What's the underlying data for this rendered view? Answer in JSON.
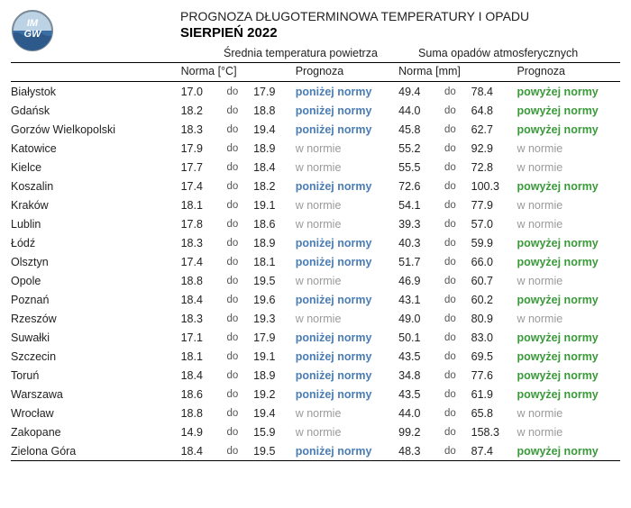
{
  "header": {
    "main_title": "PROGNOZA DŁUGOTERMINOWA TEMPERATURY I OPADU",
    "sub_title": "SIERPIEŃ 2022",
    "temp_section": "Średnia temperatura powietrza",
    "precip_section": "Suma opadów atmosferycznych",
    "norm_temp": "Norma [°C]",
    "norm_precip": "Norma [mm]",
    "prognoza": "Prognoza",
    "do": "do"
  },
  "colors": {
    "ponizej": "#4a7db5",
    "wnormie": "#9a9a9a",
    "powyzej": "#3a9a3a",
    "border": "#000000",
    "text": "#222222"
  },
  "status_labels": {
    "ponizej": "poniżej normy",
    "wnormie": "w normie",
    "powyzej": "powyżej normy"
  },
  "rows": [
    {
      "city": "Białystok",
      "tmin": "17.0",
      "tmax": "17.9",
      "tprog": "ponizej",
      "pmin": "49.4",
      "pmax": "78.4",
      "pprog": "powyzej"
    },
    {
      "city": "Gdańsk",
      "tmin": "18.2",
      "tmax": "18.8",
      "tprog": "ponizej",
      "pmin": "44.0",
      "pmax": "64.8",
      "pprog": "powyzej"
    },
    {
      "city": "Gorzów Wielkopolski",
      "tmin": "18.3",
      "tmax": "19.4",
      "tprog": "ponizej",
      "pmin": "45.8",
      "pmax": "62.7",
      "pprog": "powyzej"
    },
    {
      "city": "Katowice",
      "tmin": "17.9",
      "tmax": "18.9",
      "tprog": "wnormie",
      "pmin": "55.2",
      "pmax": "92.9",
      "pprog": "wnormie"
    },
    {
      "city": "Kielce",
      "tmin": "17.7",
      "tmax": "18.4",
      "tprog": "wnormie",
      "pmin": "55.5",
      "pmax": "72.8",
      "pprog": "wnormie"
    },
    {
      "city": "Koszalin",
      "tmin": "17.4",
      "tmax": "18.2",
      "tprog": "ponizej",
      "pmin": "72.6",
      "pmax": "100.3",
      "pprog": "powyzej"
    },
    {
      "city": "Kraków",
      "tmin": "18.1",
      "tmax": "19.1",
      "tprog": "wnormie",
      "pmin": "54.1",
      "pmax": "77.9",
      "pprog": "wnormie"
    },
    {
      "city": "Lublin",
      "tmin": "17.8",
      "tmax": "18.6",
      "tprog": "wnormie",
      "pmin": "39.3",
      "pmax": "57.0",
      "pprog": "wnormie"
    },
    {
      "city": "Łódź",
      "tmin": "18.3",
      "tmax": "18.9",
      "tprog": "ponizej",
      "pmin": "40.3",
      "pmax": "59.9",
      "pprog": "powyzej"
    },
    {
      "city": "Olsztyn",
      "tmin": "17.4",
      "tmax": "18.1",
      "tprog": "ponizej",
      "pmin": "51.7",
      "pmax": "66.0",
      "pprog": "powyzej"
    },
    {
      "city": "Opole",
      "tmin": "18.8",
      "tmax": "19.5",
      "tprog": "wnormie",
      "pmin": "46.9",
      "pmax": "60.7",
      "pprog": "wnormie"
    },
    {
      "city": "Poznań",
      "tmin": "18.4",
      "tmax": "19.6",
      "tprog": "ponizej",
      "pmin": "43.1",
      "pmax": "60.2",
      "pprog": "powyzej"
    },
    {
      "city": "Rzeszów",
      "tmin": "18.3",
      "tmax": "19.3",
      "tprog": "wnormie",
      "pmin": "49.0",
      "pmax": "80.9",
      "pprog": "wnormie"
    },
    {
      "city": "Suwałki",
      "tmin": "17.1",
      "tmax": "17.9",
      "tprog": "ponizej",
      "pmin": "50.1",
      "pmax": "83.0",
      "pprog": "powyzej"
    },
    {
      "city": "Szczecin",
      "tmin": "18.1",
      "tmax": "19.1",
      "tprog": "ponizej",
      "pmin": "43.5",
      "pmax": "69.5",
      "pprog": "powyzej"
    },
    {
      "city": "Toruń",
      "tmin": "18.4",
      "tmax": "18.9",
      "tprog": "ponizej",
      "pmin": "34.8",
      "pmax": "77.6",
      "pprog": "powyzej"
    },
    {
      "city": "Warszawa",
      "tmin": "18.6",
      "tmax": "19.2",
      "tprog": "ponizej",
      "pmin": "43.5",
      "pmax": "61.9",
      "pprog": "powyzej"
    },
    {
      "city": "Wrocław",
      "tmin": "18.8",
      "tmax": "19.4",
      "tprog": "wnormie",
      "pmin": "44.0",
      "pmax": "65.8",
      "pprog": "wnormie"
    },
    {
      "city": "Zakopane",
      "tmin": "14.9",
      "tmax": "15.9",
      "tprog": "wnormie",
      "pmin": "99.2",
      "pmax": "158.3",
      "pprog": "wnormie"
    },
    {
      "city": "Zielona Góra",
      "tmin": "18.4",
      "tmax": "19.5",
      "tprog": "ponizej",
      "pmin": "48.3",
      "pmax": "87.4",
      "pprog": "powyzej"
    }
  ]
}
